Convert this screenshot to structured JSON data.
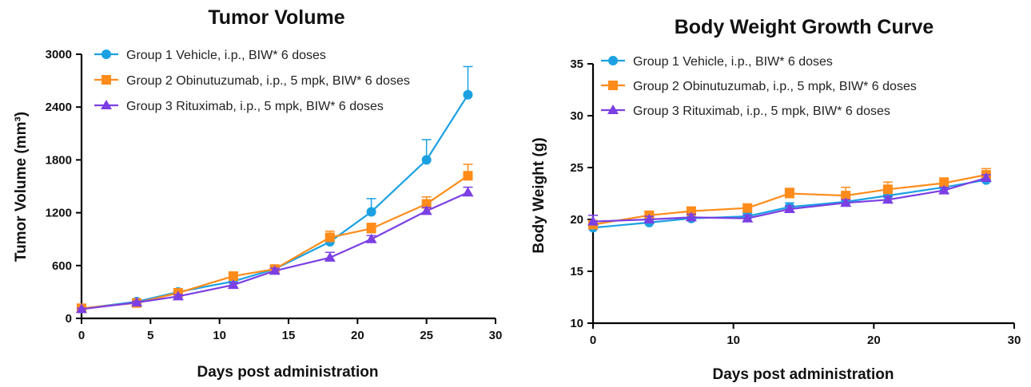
{
  "chart_data": [
    {
      "type": "line",
      "title": "Tumor Volume",
      "xlabel": "Days post administration",
      "ylabel": "Tumor Volume (mm³)",
      "xlim": [
        0,
        30
      ],
      "ylim": [
        0,
        3000
      ],
      "xticks": [
        "0",
        "5",
        "10",
        "15",
        "20",
        "25",
        "30"
      ],
      "yticks": [
        "0",
        "600",
        "1200",
        "1800",
        "2400",
        "3000"
      ],
      "legend_position": "top-left",
      "grid": false,
      "x": [
        0,
        4,
        7,
        11,
        14,
        18,
        21,
        25,
        28
      ],
      "series": [
        {
          "name": "Group 1 Vehicle, i.p., BIW* 6 doses",
          "color": "#1BA1E2",
          "marker": "circle",
          "values": [
            110,
            190,
            300,
            420,
            560,
            870,
            1210,
            1800,
            2540
          ],
          "errors": [
            10,
            15,
            25,
            30,
            40,
            60,
            150,
            230,
            320
          ]
        },
        {
          "name": "Group 2 Obinutuzumab, i.p., 5 mpk, BIW* 6 doses",
          "color": "#FF8C1A",
          "marker": "square",
          "values": [
            115,
            175,
            290,
            480,
            560,
            920,
            1020,
            1300,
            1620
          ],
          "errors": [
            10,
            15,
            20,
            30,
            40,
            70,
            60,
            80,
            130
          ]
        },
        {
          "name": "Group 3 Rituximab, i.p., 5 mpk, BIW* 6 doses",
          "color": "#7B3FE4",
          "marker": "triangle",
          "values": [
            105,
            180,
            250,
            380,
            540,
            690,
            900,
            1220,
            1430
          ],
          "errors": [
            10,
            15,
            20,
            25,
            30,
            60,
            40,
            40,
            60
          ]
        }
      ]
    },
    {
      "type": "line",
      "title": "Body Weight Growth Curve",
      "xlabel": "Days post administration",
      "ylabel": "Body Weight (g)",
      "xlim": [
        0,
        30
      ],
      "ylim": [
        10,
        35
      ],
      "xticks": [
        "0",
        "10",
        "20",
        "30"
      ],
      "yticks": [
        "10",
        "15",
        "20",
        "25",
        "30",
        "35"
      ],
      "legend_position": "top-left",
      "grid": false,
      "x": [
        0,
        4,
        7,
        11,
        14,
        18,
        21,
        25,
        28
      ],
      "series": [
        {
          "name": "Group 1 Vehicle, i.p., BIW* 6 doses",
          "color": "#1BA1E2",
          "marker": "circle",
          "values": [
            19.2,
            19.7,
            20.1,
            20.3,
            21.2,
            21.7,
            22.3,
            23.1,
            23.8
          ],
          "errors": [
            0.3,
            0.3,
            0.3,
            0.3,
            0.4,
            0.4,
            0.4,
            0.4,
            0.3
          ]
        },
        {
          "name": "Group 2 Obinutuzumab, i.p., 5 mpk, BIW* 6 doses",
          "color": "#FF8C1A",
          "marker": "square",
          "values": [
            19.5,
            20.4,
            20.8,
            21.1,
            22.5,
            22.3,
            22.9,
            23.5,
            24.3
          ],
          "errors": [
            0.3,
            0.3,
            0.3,
            0.3,
            0.5,
            0.8,
            0.7,
            0.5,
            0.6
          ]
        },
        {
          "name": "Group 3 Rituximab, i.p., 5 mpk, BIW* 6 doses",
          "color": "#7B3FE4",
          "marker": "triangle",
          "values": [
            19.8,
            20.0,
            20.2,
            20.1,
            21.0,
            21.6,
            21.9,
            22.8,
            24.0
          ],
          "errors": [
            0.6,
            0.3,
            0.3,
            0.3,
            0.3,
            0.3,
            0.3,
            0.3,
            0.3
          ]
        }
      ]
    }
  ]
}
